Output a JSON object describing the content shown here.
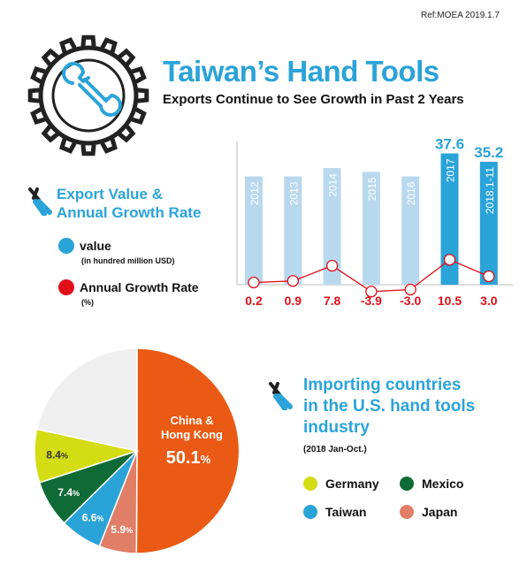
{
  "header": {
    "ref": "Ref:MOEA 2019.1.7",
    "title": "Taiwan’s Hand Tools",
    "subtitle": "Exports Continue to See Growth in Past 2 Years"
  },
  "icons": {
    "gear": "gear-icon",
    "wrench": "wrench-icon",
    "pliers": "pliers-icon"
  },
  "export_section": {
    "title_line1": "Export Value &",
    "title_line2": "Annual Growth Rate",
    "legend": {
      "value_label": "value",
      "value_unit": "(in hundred million USD)",
      "growth_label": "Annual Growth Rate",
      "growth_unit": "(%)"
    }
  },
  "import_section": {
    "title_line1": "Importing countries",
    "title_line2": "in the U.S. hand tools",
    "title_line3": "industry",
    "period": "(2018 Jan-Oct.)",
    "legend": [
      {
        "label": "Germany",
        "color": "#d4dc14"
      },
      {
        "label": "Mexico",
        "color": "#0e6b36"
      },
      {
        "label": "Taiwan",
        "color": "#2aa3d8"
      },
      {
        "label": "Japan",
        "color": "#e07e68"
      }
    ]
  },
  "colors": {
    "accent": "#2aa3d8",
    "bar_light": "#b8d8ee",
    "bar_dark": "#2aa3d8",
    "growth": "#e0101a",
    "china": "#ea5a14",
    "others": "#efefef"
  },
  "chart_data": [
    {
      "type": "bar",
      "categories": [
        "2012",
        "2013",
        "2014",
        "2015",
        "2016",
        "2017",
        "2018.1-11"
      ],
      "series": [
        {
          "name": "value",
          "values": [
            31.0,
            31.0,
            33.4,
            32.3,
            31.0,
            37.6,
            35.2
          ],
          "value_labels": [
            "",
            "",
            "",
            "",
            "",
            "37.6",
            "35.2"
          ],
          "highlight": [
            false,
            false,
            false,
            false,
            false,
            true,
            true
          ]
        },
        {
          "name": "Annual Growth Rate",
          "type": "line",
          "values": [
            0.2,
            0.9,
            7.8,
            -3.9,
            -3.0,
            10.5,
            3.0
          ],
          "value_labels": [
            "0.2",
            "0.9",
            "7.8",
            "-3.9",
            "-3.0",
            "10.5",
            "3.0"
          ]
        }
      ],
      "ylim": [
        0,
        40
      ],
      "growth_ylim": [
        -6,
        12
      ],
      "grid": false
    },
    {
      "type": "pie",
      "slices": [
        {
          "label": "China & Hong Kong",
          "value": 50.1,
          "value_label": "50.1",
          "unit": "%",
          "color": "#ea5a14"
        },
        {
          "label": "Japan",
          "value": 5.9,
          "value_label": "5.9",
          "unit": "%",
          "color": "#e07e68"
        },
        {
          "label": "Taiwan",
          "value": 6.6,
          "value_label": "6.6",
          "unit": "%",
          "color": "#2aa3d8"
        },
        {
          "label": "Mexico",
          "value": 7.4,
          "value_label": "7.4",
          "unit": "%",
          "color": "#0e6b36"
        },
        {
          "label": "Germany",
          "value": 8.4,
          "value_label": "8.4",
          "unit": "%",
          "color": "#d4dc14"
        },
        {
          "label": "",
          "value": 21.6,
          "value_label": "",
          "unit": "",
          "color": "#efefef"
        }
      ],
      "start_angle_deg": 0,
      "direction": "clockwise"
    }
  ]
}
